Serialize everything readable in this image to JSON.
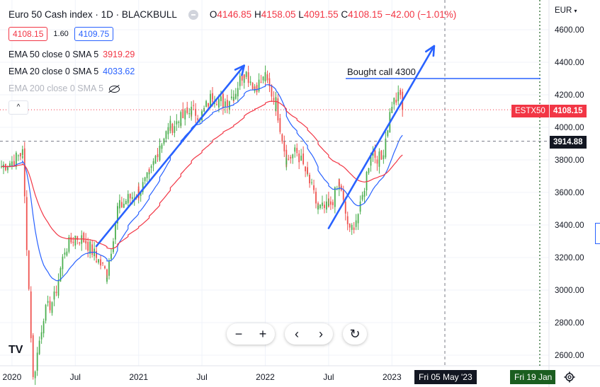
{
  "header": {
    "symbol_title": "Euro 50 Cash index · 1D · BLACKBULL",
    "ohlc": {
      "open_label": "O",
      "open": "4146.85",
      "high_label": "H",
      "high": "4158.05",
      "low_label": "L",
      "low": "4091.55",
      "close_label": "C",
      "close": "4108.15",
      "change": "−42.00 (−1.01%)"
    },
    "sell_price": "4108.15",
    "spread": "1.60",
    "buy_price": "4109.75"
  },
  "indicators": [
    {
      "label": "EMA 50 close 0 SMA 5",
      "value": "3919.29",
      "color": "#f23645"
    },
    {
      "label": "EMA 20 close 0 SMA 5",
      "value": "4033.62",
      "color": "#2962ff"
    },
    {
      "label": "EMA 200 close 0 SMA 5",
      "value": "",
      "hidden": true
    }
  ],
  "collapse_label": "^",
  "annotation": {
    "text": "Bought call 4300"
  },
  "price_axis": {
    "currency": "EUR",
    "ticks": [
      "4600.00",
      "4400.00",
      "4200.00",
      "4000.00",
      "3800.00",
      "3600.00",
      "3400.00",
      "3200.00",
      "3000.00",
      "2800.00",
      "2600.00"
    ],
    "symbol_badge": "ESTX50",
    "last_price_badge": "4108.15",
    "crosshair_price": "3914.88"
  },
  "time_axis": {
    "ticks": [
      "2020",
      "Jul",
      "2021",
      "Jul",
      "2022",
      "Jul",
      "2023"
    ],
    "crosshair_label": "Fri 05 May '23",
    "marker_label": "Fri 19 Jan"
  },
  "toolbar": {
    "zoom_out": "−",
    "zoom_in": "+",
    "scroll_left": "‹",
    "scroll_right": "›",
    "reset": "↻"
  },
  "logo_text": "TV",
  "colors": {
    "up": "#4caf50",
    "down": "#ef5350",
    "ema50": "#f23645",
    "ema20": "#2962ff",
    "trendline": "#2962ff",
    "accent_red": "#f23645"
  },
  "chart_data": {
    "type": "candlestick",
    "y_range": [
      2500,
      4700
    ],
    "price_ticks": [
      4600,
      4400,
      4200,
      4000,
      3800,
      3600,
      3400,
      3200,
      3000,
      2800,
      2600
    ],
    "last_price": 4108.15,
    "crosshair_price": 3914.88,
    "annotation_level": 4300,
    "time_ticks": [
      "2020",
      "Jul",
      "2021",
      "Jul",
      "2022",
      "Jul",
      "2023"
    ],
    "price_path": [
      [
        "2019-12",
        3760
      ],
      [
        "2020-01",
        3790
      ],
      [
        "2020-02",
        3840
      ],
      [
        "2020-03",
        2450
      ],
      [
        "2020-04",
        2850
      ],
      [
        "2020-05",
        2950
      ],
      [
        "2020-06",
        3250
      ],
      [
        "2020-07",
        3330
      ],
      [
        "2020-08",
        3300
      ],
      [
        "2020-09",
        3200
      ],
      [
        "2020-10",
        3100
      ],
      [
        "2020-11",
        3500
      ],
      [
        "2020-12",
        3560
      ],
      [
        "2021-01",
        3600
      ],
      [
        "2021-02",
        3700
      ],
      [
        "2021-03",
        3900
      ],
      [
        "2021-04",
        4000
      ],
      [
        "2021-05",
        4050
      ],
      [
        "2021-06",
        4100
      ],
      [
        "2021-07",
        4080
      ],
      [
        "2021-08",
        4200
      ],
      [
        "2021-09",
        4150
      ],
      [
        "2021-10",
        4200
      ],
      [
        "2021-11",
        4350
      ],
      [
        "2021-12",
        4250
      ],
      [
        "2022-01",
        4300
      ],
      [
        "2022-02",
        4150
      ],
      [
        "2022-03",
        3800
      ],
      [
        "2022-04",
        3850
      ],
      [
        "2022-05",
        3700
      ],
      [
        "2022-06",
        3500
      ],
      [
        "2022-07",
        3500
      ],
      [
        "2022-08",
        3650
      ],
      [
        "2022-09",
        3350
      ],
      [
        "2022-10",
        3500
      ],
      [
        "2022-11",
        3850
      ],
      [
        "2022-12",
        3800
      ],
      [
        "2023-01",
        4150
      ],
      [
        "2023-02",
        4200
      ]
    ],
    "trendlines": [
      {
        "from": [
          "2020-09",
          3270
        ],
        "to": [
          "2021-11",
          4380
        ]
      },
      {
        "from": [
          "2022-07",
          3380
        ],
        "to": [
          "2023-05",
          4500
        ]
      }
    ]
  }
}
